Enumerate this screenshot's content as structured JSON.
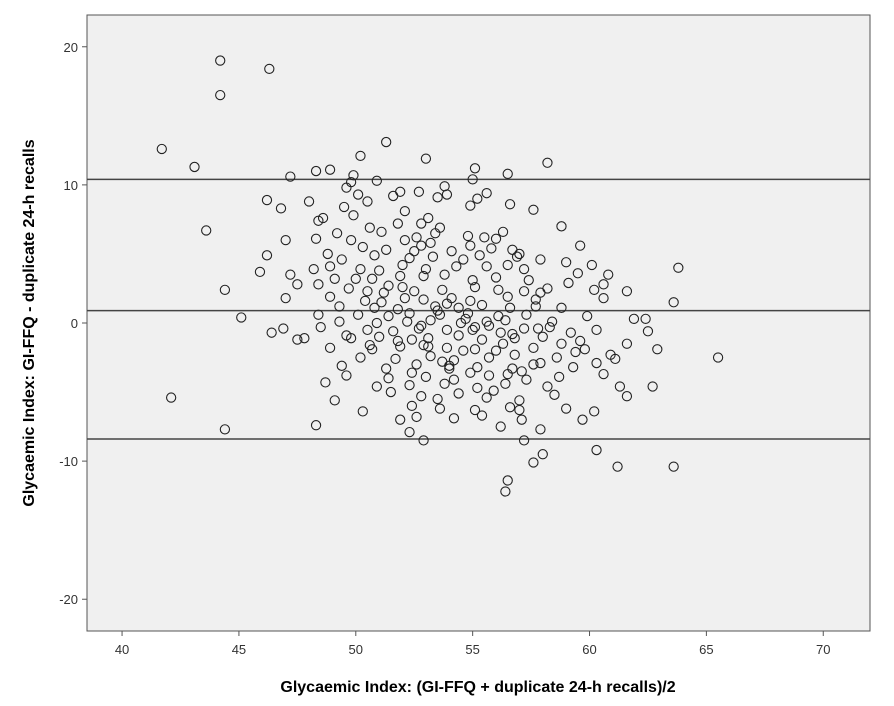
{
  "chart_data": {
    "type": "scatter",
    "title": "",
    "xlabel": "Glycaemic Index: (GI-FFQ + duplicate 24-h recalls)/2",
    "ylabel": "Glycaemic Index: GI-FFQ - duplicate 24-h recalls",
    "xlim": [
      38.5,
      72
    ],
    "ylim": [
      -22.3,
      22.3
    ],
    "xticks": [
      40,
      45,
      50,
      55,
      60,
      65,
      70
    ],
    "yticks": [
      -20,
      -10,
      0,
      10,
      20
    ],
    "grid": false,
    "reference_lines": [
      10.4,
      0.9,
      -8.4
    ],
    "colors": {
      "plot_background": "#f0f0f0",
      "marker_stroke": "#222222",
      "line": "#444444"
    },
    "series": [
      {
        "points": [
          [
            44.2,
            19.0
          ],
          [
            46.3,
            18.4
          ],
          [
            44.2,
            16.5
          ],
          [
            51.3,
            13.1
          ],
          [
            41.7,
            12.6
          ],
          [
            50.2,
            12.1
          ],
          [
            53.0,
            11.9
          ],
          [
            58.2,
            11.6
          ],
          [
            43.1,
            11.3
          ],
          [
            48.9,
            11.1
          ],
          [
            48.3,
            11.0
          ],
          [
            55.1,
            11.2
          ],
          [
            56.5,
            10.8
          ],
          [
            47.2,
            10.6
          ],
          [
            55.0,
            10.4
          ],
          [
            49.8,
            10.2
          ],
          [
            49.6,
            9.8
          ],
          [
            53.8,
            9.9
          ],
          [
            50.1,
            9.3
          ],
          [
            51.6,
            9.2
          ],
          [
            51.9,
            9.5
          ],
          [
            52.7,
            9.5
          ],
          [
            53.9,
            9.3
          ],
          [
            55.6,
            9.4
          ],
          [
            46.2,
            8.9
          ],
          [
            48.0,
            8.8
          ],
          [
            50.5,
            8.8
          ],
          [
            49.5,
            8.4
          ],
          [
            46.8,
            8.3
          ],
          [
            54.9,
            8.5
          ],
          [
            57.6,
            8.2
          ],
          [
            48.6,
            7.6
          ],
          [
            49.9,
            7.8
          ],
          [
            52.1,
            8.1
          ],
          [
            53.1,
            7.6
          ],
          [
            48.4,
            7.4
          ],
          [
            51.8,
            7.2
          ],
          [
            50.6,
            6.9
          ],
          [
            52.8,
            7.2
          ],
          [
            53.6,
            6.9
          ],
          [
            58.8,
            7.0
          ],
          [
            43.6,
            6.7
          ],
          [
            49.2,
            6.5
          ],
          [
            51.1,
            6.6
          ],
          [
            53.4,
            6.5
          ],
          [
            54.8,
            6.3
          ],
          [
            56.3,
            6.6
          ],
          [
            48.3,
            6.1
          ],
          [
            49.8,
            6.0
          ],
          [
            52.1,
            6.0
          ],
          [
            52.6,
            6.2
          ],
          [
            53.2,
            5.8
          ],
          [
            55.5,
            6.2
          ],
          [
            47.0,
            6.0
          ],
          [
            50.3,
            5.5
          ],
          [
            51.3,
            5.3
          ],
          [
            52.8,
            5.6
          ],
          [
            54.1,
            5.2
          ],
          [
            55.8,
            5.4
          ],
          [
            56.7,
            5.3
          ],
          [
            59.6,
            5.6
          ],
          [
            46.2,
            4.9
          ],
          [
            48.8,
            5.0
          ],
          [
            49.4,
            4.6
          ],
          [
            50.8,
            4.9
          ],
          [
            52.3,
            4.7
          ],
          [
            53.3,
            4.8
          ],
          [
            54.6,
            4.6
          ],
          [
            55.3,
            4.9
          ],
          [
            56.9,
            4.8
          ],
          [
            60.1,
            4.2
          ],
          [
            48.9,
            4.1
          ],
          [
            50.2,
            3.9
          ],
          [
            51.0,
            3.8
          ],
          [
            52.0,
            4.2
          ],
          [
            53.0,
            3.9
          ],
          [
            54.3,
            4.1
          ],
          [
            55.6,
            4.1
          ],
          [
            56.5,
            4.2
          ],
          [
            57.2,
            3.9
          ],
          [
            59.5,
            3.6
          ],
          [
            63.8,
            4.0
          ],
          [
            45.9,
            3.7
          ],
          [
            47.2,
            3.5
          ],
          [
            49.1,
            3.2
          ],
          [
            50.7,
            3.2
          ],
          [
            51.9,
            3.4
          ],
          [
            52.9,
            3.4
          ],
          [
            53.8,
            3.5
          ],
          [
            55.0,
            3.1
          ],
          [
            56.0,
            3.3
          ],
          [
            57.4,
            3.1
          ],
          [
            60.6,
            2.8
          ],
          [
            48.4,
            2.8
          ],
          [
            49.7,
            2.5
          ],
          [
            51.4,
            2.7
          ],
          [
            52.5,
            2.3
          ],
          [
            53.7,
            2.4
          ],
          [
            55.1,
            2.6
          ],
          [
            56.1,
            2.4
          ],
          [
            57.9,
            2.2
          ],
          [
            60.2,
            2.4
          ],
          [
            44.4,
            2.4
          ],
          [
            47.0,
            1.8
          ],
          [
            48.9,
            1.9
          ],
          [
            50.4,
            1.6
          ],
          [
            51.1,
            1.5
          ],
          [
            52.1,
            1.8
          ],
          [
            52.9,
            1.7
          ],
          [
            54.1,
            1.8
          ],
          [
            54.9,
            1.6
          ],
          [
            56.5,
            1.9
          ],
          [
            57.7,
            1.7
          ],
          [
            60.6,
            1.8
          ],
          [
            63.6,
            1.5
          ],
          [
            49.3,
            1.2
          ],
          [
            50.8,
            1.1
          ],
          [
            51.8,
            1.0
          ],
          [
            53.4,
            1.2
          ],
          [
            54.4,
            1.1
          ],
          [
            55.4,
            1.3
          ],
          [
            56.6,
            1.1
          ],
          [
            57.7,
            1.2
          ],
          [
            58.8,
            1.1
          ],
          [
            48.4,
            0.6
          ],
          [
            50.1,
            0.6
          ],
          [
            51.4,
            0.5
          ],
          [
            52.3,
            0.7
          ],
          [
            53.6,
            0.6
          ],
          [
            54.8,
            0.7
          ],
          [
            56.1,
            0.5
          ],
          [
            57.3,
            0.6
          ],
          [
            59.9,
            0.5
          ],
          [
            62.4,
            0.3
          ],
          [
            49.3,
            0.1
          ],
          [
            50.9,
            0.0
          ],
          [
            52.2,
            0.1
          ],
          [
            53.2,
            0.2
          ],
          [
            54.5,
            0.0
          ],
          [
            55.6,
            0.1
          ],
          [
            56.4,
            0.2
          ],
          [
            58.4,
            0.1
          ],
          [
            46.9,
            -0.4
          ],
          [
            48.5,
            -0.3
          ],
          [
            50.5,
            -0.5
          ],
          [
            51.6,
            -0.6
          ],
          [
            52.7,
            -0.4
          ],
          [
            53.9,
            -0.5
          ],
          [
            55.1,
            -0.3
          ],
          [
            56.2,
            -0.7
          ],
          [
            57.2,
            -0.4
          ],
          [
            58.3,
            -0.3
          ],
          [
            60.3,
            -0.5
          ],
          [
            47.5,
            -1.2
          ],
          [
            49.8,
            -1.1
          ],
          [
            51.0,
            -1.0
          ],
          [
            52.4,
            -1.2
          ],
          [
            53.1,
            -1.1
          ],
          [
            54.4,
            -0.9
          ],
          [
            55.4,
            -1.2
          ],
          [
            56.8,
            -1.1
          ],
          [
            58.0,
            -1.0
          ],
          [
            59.6,
            -1.3
          ],
          [
            61.6,
            -1.5
          ],
          [
            48.9,
            -1.8
          ],
          [
            50.7,
            -1.9
          ],
          [
            51.9,
            -1.7
          ],
          [
            52.9,
            -1.6
          ],
          [
            53.9,
            -1.8
          ],
          [
            55.1,
            -1.9
          ],
          [
            56.0,
            -2.0
          ],
          [
            57.6,
            -1.8
          ],
          [
            59.4,
            -2.1
          ],
          [
            62.9,
            -1.9
          ],
          [
            50.2,
            -2.5
          ],
          [
            51.7,
            -2.6
          ],
          [
            53.2,
            -2.4
          ],
          [
            54.2,
            -2.7
          ],
          [
            55.7,
            -2.5
          ],
          [
            56.8,
            -2.3
          ],
          [
            58.6,
            -2.5
          ],
          [
            60.9,
            -2.3
          ],
          [
            65.5,
            -2.5
          ],
          [
            49.4,
            -3.1
          ],
          [
            51.3,
            -3.3
          ],
          [
            52.6,
            -3.0
          ],
          [
            54.0,
            -3.1
          ],
          [
            55.2,
            -3.2
          ],
          [
            56.7,
            -3.3
          ],
          [
            57.6,
            -3.0
          ],
          [
            59.3,
            -3.2
          ],
          [
            49.6,
            -3.8
          ],
          [
            51.4,
            -4.0
          ],
          [
            53.0,
            -3.9
          ],
          [
            54.2,
            -4.1
          ],
          [
            55.7,
            -3.8
          ],
          [
            57.3,
            -4.1
          ],
          [
            58.7,
            -3.9
          ],
          [
            60.6,
            -3.7
          ],
          [
            48.7,
            -4.3
          ],
          [
            50.9,
            -4.6
          ],
          [
            52.3,
            -4.5
          ],
          [
            53.8,
            -4.4
          ],
          [
            55.2,
            -4.7
          ],
          [
            56.4,
            -4.4
          ],
          [
            58.2,
            -4.6
          ],
          [
            61.3,
            -4.6
          ],
          [
            62.7,
            -4.6
          ],
          [
            42.1,
            -5.4
          ],
          [
            49.1,
            -5.6
          ],
          [
            52.8,
            -5.3
          ],
          [
            54.4,
            -5.1
          ],
          [
            55.6,
            -5.4
          ],
          [
            57.0,
            -5.6
          ],
          [
            58.5,
            -5.2
          ],
          [
            61.6,
            -5.3
          ],
          [
            52.4,
            -6.0
          ],
          [
            53.6,
            -6.2
          ],
          [
            55.1,
            -6.3
          ],
          [
            56.6,
            -6.1
          ],
          [
            59.0,
            -6.2
          ],
          [
            60.2,
            -6.4
          ],
          [
            52.6,
            -6.8
          ],
          [
            54.2,
            -6.9
          ],
          [
            55.4,
            -6.7
          ],
          [
            57.1,
            -7.0
          ],
          [
            59.7,
            -7.0
          ],
          [
            48.3,
            -7.4
          ],
          [
            44.4,
            -7.7
          ],
          [
            52.3,
            -7.9
          ],
          [
            56.2,
            -7.5
          ],
          [
            57.9,
            -7.7
          ],
          [
            52.9,
            -8.5
          ],
          [
            57.2,
            -8.5
          ],
          [
            60.3,
            -9.2
          ],
          [
            58.0,
            -9.5
          ],
          [
            57.6,
            -10.1
          ],
          [
            61.2,
            -10.4
          ],
          [
            63.6,
            -10.4
          ],
          [
            56.5,
            -11.4
          ],
          [
            56.4,
            -12.2
          ],
          [
            53.5,
            0.9
          ],
          [
            53.9,
            1.4
          ],
          [
            54.7,
            0.3
          ],
          [
            52.8,
            -0.2
          ],
          [
            55.7,
            -0.2
          ],
          [
            53.1,
            -1.7
          ],
          [
            54.6,
            -2.0
          ],
          [
            56.3,
            -1.5
          ],
          [
            52.4,
            -3.6
          ],
          [
            54.9,
            -3.6
          ],
          [
            56.5,
            -3.7
          ],
          [
            55.9,
            -4.9
          ],
          [
            53.5,
            -5.5
          ],
          [
            57.0,
            -6.3
          ],
          [
            51.9,
            -7.0
          ],
          [
            59.2,
            -0.7
          ],
          [
            58.8,
            -1.5
          ],
          [
            59.8,
            -1.9
          ],
          [
            60.3,
            -2.9
          ],
          [
            61.1,
            -2.6
          ],
          [
            57.9,
            -2.9
          ],
          [
            51.5,
            -5.0
          ],
          [
            50.3,
            -6.4
          ],
          [
            51.8,
            -1.3
          ],
          [
            50.6,
            -1.6
          ],
          [
            53.7,
            -2.8
          ],
          [
            55.0,
            -0.5
          ],
          [
            56.7,
            -0.8
          ],
          [
            57.8,
            -0.4
          ],
          [
            52.0,
            2.6
          ],
          [
            51.2,
            2.2
          ],
          [
            50.5,
            2.3
          ],
          [
            57.2,
            2.3
          ],
          [
            58.2,
            2.5
          ],
          [
            59.1,
            2.9
          ],
          [
            47.5,
            2.8
          ],
          [
            48.2,
            3.9
          ],
          [
            50.0,
            3.2
          ],
          [
            52.5,
            5.2
          ],
          [
            54.9,
            5.6
          ],
          [
            56.0,
            6.1
          ],
          [
            57.0,
            5.0
          ],
          [
            57.9,
            4.6
          ],
          [
            59.0,
            4.4
          ],
          [
            60.8,
            3.5
          ],
          [
            61.6,
            2.3
          ],
          [
            53.5,
            9.1
          ],
          [
            55.2,
            9.0
          ],
          [
            56.6,
            8.6
          ],
          [
            50.9,
            10.3
          ],
          [
            49.9,
            10.7
          ],
          [
            45.1,
            0.4
          ],
          [
            46.4,
            -0.7
          ],
          [
            47.8,
            -1.1
          ],
          [
            49.6,
            -0.9
          ],
          [
            61.9,
            0.3
          ],
          [
            62.5,
            -0.6
          ],
          [
            54.0,
            -3.3
          ],
          [
            57.1,
            -3.5
          ]
        ]
      }
    ]
  }
}
